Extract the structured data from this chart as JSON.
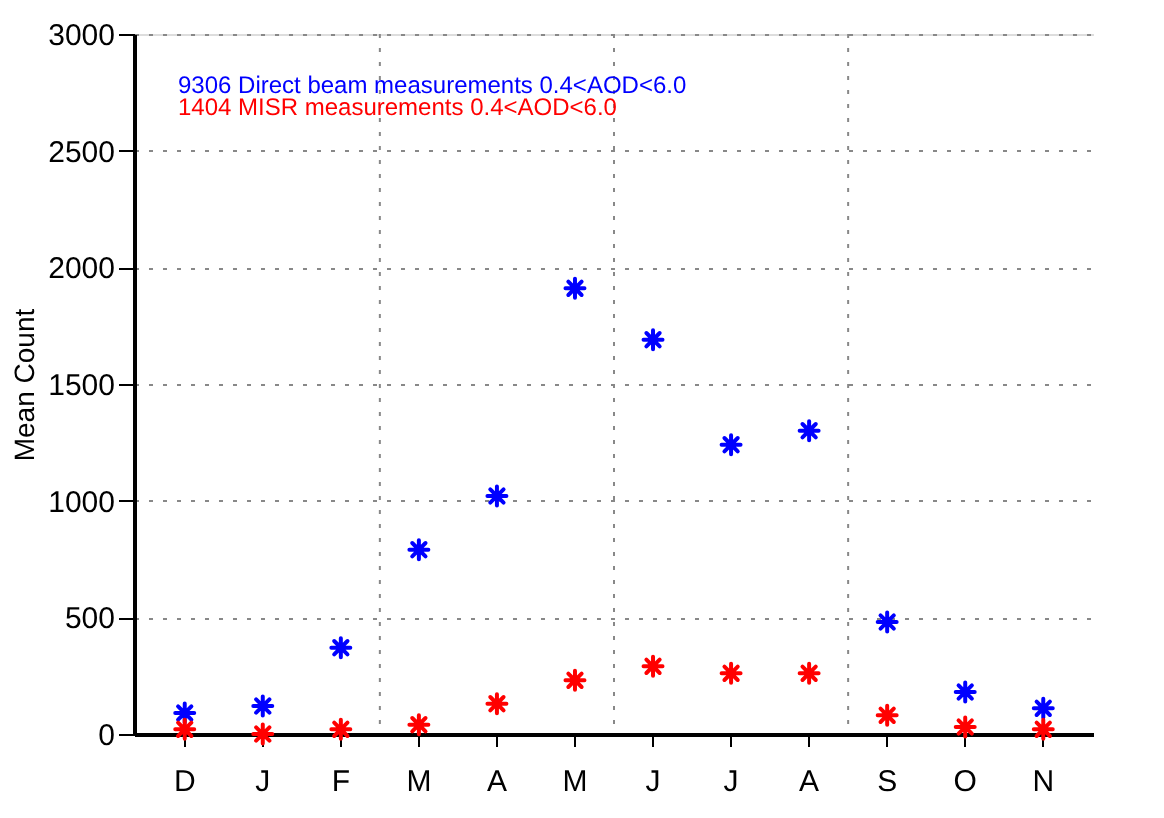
{
  "chart_data": {
    "type": "scatter",
    "ylabel": "Mean Count",
    "categories": [
      "D",
      "J",
      "F",
      "M",
      "A",
      "M",
      "J",
      "J",
      "A",
      "S",
      "O",
      "N"
    ],
    "series": [
      {
        "name": "9306 Direct beam measurements  0.4<AOD<6.0",
        "color": "#0000ff",
        "values": [
          90,
          120,
          370,
          790,
          1020,
          1910,
          1690,
          1240,
          1300,
          480,
          180,
          110
        ]
      },
      {
        "name": "1404 MISR measurements  0.4<AOD<6.0",
        "color": "#ff0000",
        "values": [
          20,
          0,
          20,
          40,
          130,
          230,
          290,
          260,
          260,
          80,
          30,
          20
        ]
      }
    ],
    "ylim": [
      0,
      3000
    ],
    "yticks": [
      0,
      500,
      1000,
      1500,
      2000,
      2500,
      3000
    ],
    "grid": true,
    "legend": "top left",
    "marker": "cross"
  }
}
